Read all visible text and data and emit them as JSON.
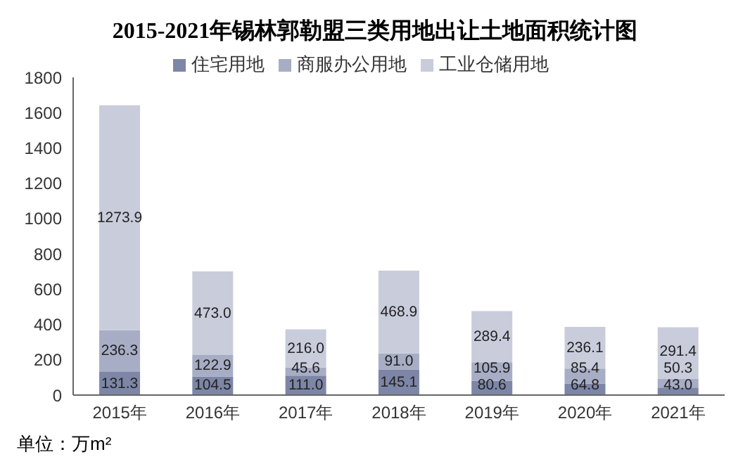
{
  "chart_data": {
    "type": "bar",
    "title": "2015-2021年锡林郭勒盟三类用地出让土地面积统计图",
    "stacked": true,
    "categories": [
      "2015年",
      "2016年",
      "2017年",
      "2018年",
      "2019年",
      "2020年",
      "2021年"
    ],
    "series": [
      {
        "name": "住宅用地",
        "color": "#7d86a6",
        "values": [
          131.3,
          104.5,
          111.0,
          145.1,
          80.6,
          64.8,
          43.0
        ],
        "value_labels": [
          "131.3",
          "104.5",
          "111.0",
          "145.1",
          "80.6",
          "64.8",
          "43.0"
        ]
      },
      {
        "name": "商服办公用地",
        "color": "#a7adc4",
        "values": [
          236.3,
          122.9,
          45.6,
          91.0,
          105.9,
          85.4,
          50.3
        ],
        "value_labels": [
          "236.3",
          "122.9",
          "45.6",
          "91.0",
          "105.9",
          "85.4",
          "50.3"
        ]
      },
      {
        "name": "工业仓储用地",
        "color": "#c9ccdb",
        "values": [
          1273.9,
          473.0,
          216.0,
          468.9,
          289.4,
          236.1,
          291.4
        ],
        "value_labels": [
          "1273.9",
          "473.0",
          "216.0",
          "468.9",
          "289.4",
          "236.1",
          "291.4"
        ]
      }
    ],
    "ylim": [
      0,
      1800
    ],
    "yticks": [
      0,
      200,
      400,
      600,
      800,
      1000,
      1200,
      1400,
      1600,
      1800
    ],
    "grid": false,
    "legend": "top",
    "annotations": [
      "单位：万m²"
    ]
  }
}
